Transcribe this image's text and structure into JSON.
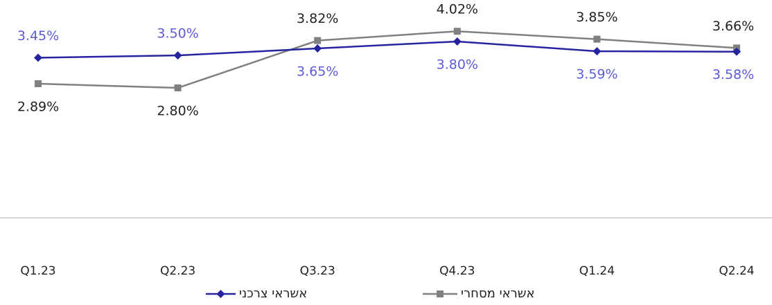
{
  "chart_data": {
    "type": "line",
    "categories": [
      "Q1.23",
      "Q2.23",
      "Q3.23",
      "Q4.23",
      "Q1.24",
      "Q2.24"
    ],
    "series": [
      {
        "name": "אשראי צרכני",
        "color": "#2424a0",
        "marker": "diamond",
        "values": [
          3.45,
          3.5,
          3.65,
          3.8,
          3.59,
          3.58
        ],
        "value_labels": [
          "3.45%",
          "3.50%",
          "3.65%",
          "3.80%",
          "3.59%",
          "3.58%"
        ]
      },
      {
        "name": "אשראי מסחרי",
        "color": "#808080",
        "marker": "square",
        "values": [
          2.89,
          2.8,
          3.82,
          4.02,
          3.85,
          3.66
        ],
        "value_labels": [
          "2.89%",
          "2.80%",
          "3.82%",
          "4.02%",
          "3.85%",
          "3.66%"
        ]
      }
    ],
    "ylim": [
      0,
      4.5
    ]
  }
}
